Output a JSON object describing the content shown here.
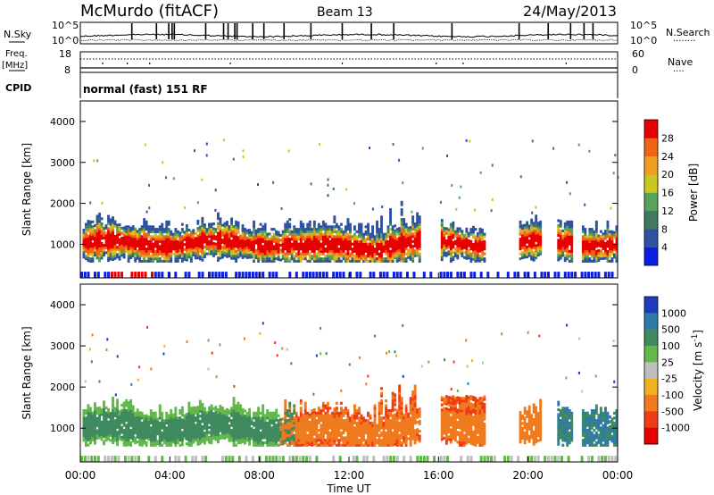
{
  "header": {
    "station": "McMurdo (fitACF)",
    "beam": "Beam 13",
    "date": "24/May/2013"
  },
  "noise_panel": {
    "left_label": "N.Sky",
    "right_label": "N.Search",
    "right_label_dots": "........",
    "y_top_left": "10^5",
    "y_bottom_left": "10^0",
    "y_top_right": "10^5",
    "y_bottom_right": "10^0"
  },
  "freq_panel": {
    "left_label_1": "Freq.",
    "left_label_2": "[MHz]",
    "right_label": "Nave",
    "right_label_dots": "....",
    "left_ticks": [
      "18",
      "8"
    ],
    "right_ticks": [
      "60",
      "0"
    ]
  },
  "cpid_panel": {
    "label": "CPID",
    "text": "normal (fast) 151 RF"
  },
  "x_axis": {
    "title": "Time UT",
    "ticks": [
      "00:00",
      "04:00",
      "08:00",
      "12:00",
      "16:00",
      "20:00",
      "00:00"
    ]
  },
  "chart_data": [
    {
      "type": "heatmap",
      "ylabel": "Slant Range [km]",
      "y_ticks": [
        "1000",
        "2000",
        "3000",
        "4000"
      ],
      "ylim": [
        180,
        4500
      ],
      "xlim_hours": [
        0,
        24
      ],
      "colorbar": {
        "label": "Power [dB]",
        "ticks": [
          "4",
          "8",
          "12",
          "16",
          "20",
          "24",
          "28"
        ],
        "colors": [
          "#0a1ee6",
          "#2e52a3",
          "#3f7a5e",
          "#57a35c",
          "#c8c81e",
          "#f0a020",
          "#f06414",
          "#e60000"
        ]
      }
    },
    {
      "type": "heatmap",
      "ylabel": "Slant Range [km]",
      "y_ticks": [
        "1000",
        "2000",
        "3000",
        "4000"
      ],
      "ylim": [
        180,
        4500
      ],
      "xlim_hours": [
        0,
        24
      ],
      "colorbar": {
        "label": "Velocity [m s",
        "label_sup": "-1",
        "label_end": "]",
        "ticks": [
          "1000",
          "500",
          "100",
          "25",
          "-25",
          "-100",
          "-500",
          "-1000"
        ],
        "colors": [
          "#1e3cbe",
          "#2e7aa8",
          "#3f8a5e",
          "#62b84a",
          "#bebebe",
          "#f0b020",
          "#f07a1e",
          "#f03c14",
          "#e60000"
        ]
      }
    }
  ]
}
